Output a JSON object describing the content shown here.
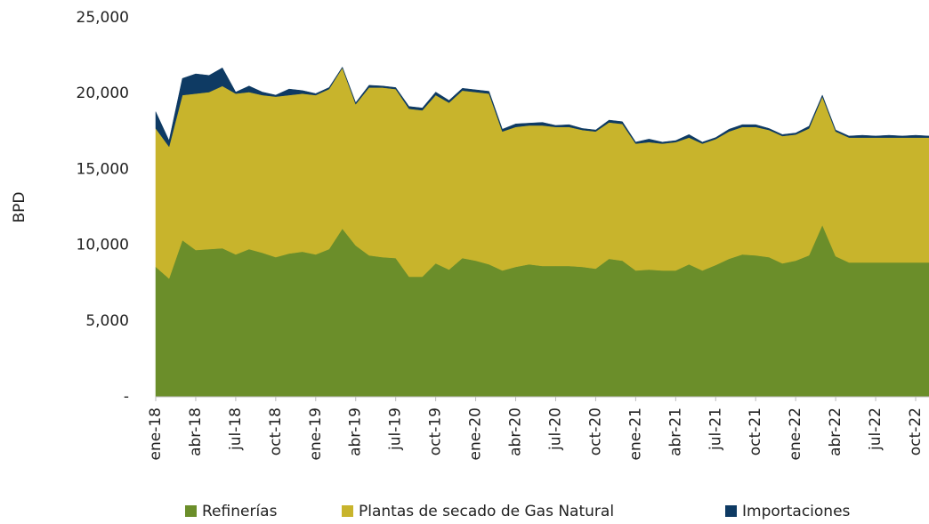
{
  "chart_data": {
    "type": "stacked_area",
    "ylabel": "BPD",
    "categories": [
      "ene-18",
      null,
      null,
      "abr-18",
      null,
      null,
      "jul-18",
      null,
      null,
      "oct-18",
      null,
      null,
      "ene-19",
      null,
      null,
      "abr-19",
      null,
      null,
      "jul-19",
      null,
      null,
      "oct-19",
      null,
      null,
      "ene-20",
      null,
      null,
      "abr-20",
      null,
      null,
      "jul-20",
      null,
      null,
      "oct-20",
      null,
      null,
      "ene-21",
      null,
      null,
      "abr-21",
      null,
      null,
      "jul-21",
      null,
      null,
      "oct-21",
      null,
      null,
      "ene-22",
      null,
      null,
      "abr-22",
      null,
      null,
      "jul-22",
      null,
      null,
      "oct-22",
      null
    ],
    "series": [
      {
        "name": "Refinerías",
        "color": "#6b8e2a",
        "values": [
          8570,
          7800,
          10330,
          9680,
          9740,
          9800,
          9390,
          9740,
          9500,
          9210,
          9450,
          9570,
          9390,
          9740,
          11090,
          9980,
          9330,
          9210,
          9150,
          7920,
          7920,
          8800,
          8390,
          9150,
          8980,
          8740,
          8330,
          8570,
          8740,
          8630,
          8630,
          8630,
          8570,
          8450,
          9100,
          8980,
          8330,
          8390,
          8330,
          8330,
          8740,
          8330,
          8690,
          9100,
          9390,
          9330,
          9210,
          8800,
          8980,
          9330,
          11330,
          9270,
          8860,
          8860,
          8860,
          8860,
          8860,
          8860,
          8860
        ]
      },
      {
        "name": "Plantas de secado de Gas Natural",
        "color": "#c8b42c",
        "values": [
          9130,
          8700,
          9570,
          10320,
          10360,
          10700,
          10610,
          10360,
          10400,
          10590,
          10450,
          10430,
          10510,
          10560,
          10610,
          9320,
          11070,
          11190,
          11150,
          11080,
          10980,
          11100,
          11010,
          11050,
          11120,
          11260,
          9170,
          9230,
          9160,
          9270,
          9170,
          9170,
          9030,
          9050,
          9000,
          9020,
          8370,
          8410,
          8370,
          8470,
          8360,
          8370,
          8310,
          8400,
          8410,
          8470,
          8390,
          8400,
          8320,
          8370,
          8470,
          8230,
          8240,
          8240,
          8240,
          8240,
          8240,
          8240,
          8240
        ]
      },
      {
        "name": "Importaciones",
        "color": "#0e3a63",
        "values": [
          1100,
          400,
          1100,
          1300,
          1100,
          1200,
          100,
          400,
          200,
          100,
          400,
          200,
          100,
          100,
          50,
          100,
          150,
          100,
          100,
          150,
          150,
          200,
          150,
          150,
          150,
          150,
          150,
          200,
          150,
          200,
          100,
          150,
          100,
          100,
          150,
          150,
          100,
          200,
          100,
          100,
          200,
          100,
          100,
          150,
          150,
          150,
          100,
          100,
          100,
          150,
          100,
          100,
          100,
          150,
          100,
          150,
          100,
          150,
          100
        ]
      }
    ],
    "ylim": [
      0,
      25000
    ],
    "yticks": [
      {
        "value": 0,
        "label": "-"
      },
      {
        "value": 5000,
        "label": "5,000"
      },
      {
        "value": 10000,
        "label": "10,000"
      },
      {
        "value": 15000,
        "label": "15,000"
      },
      {
        "value": 20000,
        "label": "20,000"
      },
      {
        "value": 25000,
        "label": "25,000"
      }
    ],
    "grid": false,
    "legend": "bottom"
  }
}
